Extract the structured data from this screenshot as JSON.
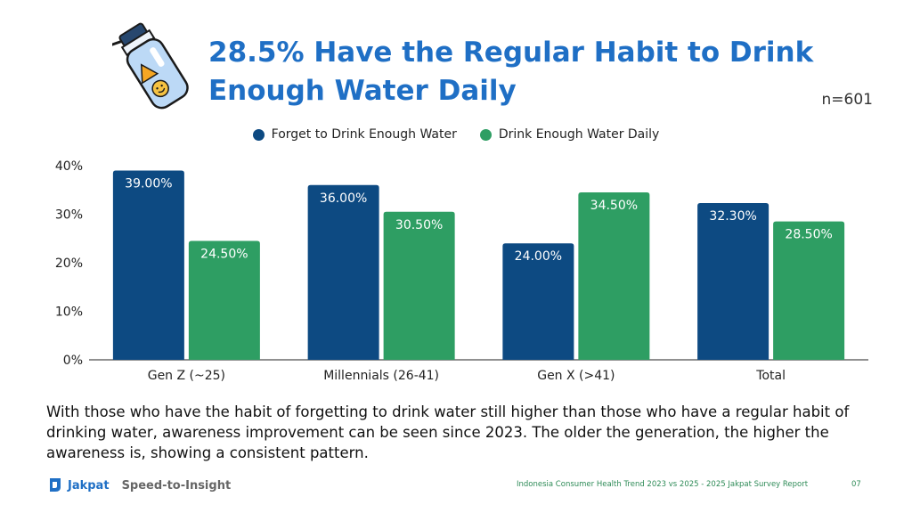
{
  "title": "28.5% Have the Regular Habit to Drink Enough Water Daily",
  "sample_size": "n=601",
  "caption": "With those who have the habit of forgetting to drink water still higher than those who have a regular habit of drinking water, awareness improvement can be seen since 2023. The older the generation, the higher the awareness is, showing a consistent pattern.",
  "brand": {
    "name": "Jakpat",
    "tagline": "Speed-to-Insight"
  },
  "footer": {
    "report": "Indonesia Consumer Health Trend 2023 vs 2025 - 2025 Jakpat Survey Report",
    "page": "07"
  },
  "colors": {
    "title": "#1f6fc5",
    "series_forget": "#0d4a82",
    "series_drink": "#2e9e63"
  },
  "icons": {
    "illustration": "water-bottle-icon",
    "logo": "jakpat-logo-icon"
  },
  "chart_data": {
    "type": "bar",
    "categories": [
      "Gen Z (~25)",
      "Millennials (26-41)",
      "Gen X (>41)",
      "Total"
    ],
    "series": [
      {
        "name": "Forget to Drink Enough Water",
        "values": [
          39.0,
          36.0,
          24.0,
          32.3
        ],
        "labels": [
          "39.00%",
          "36.00%",
          "24.00%",
          "32.30%"
        ],
        "color": "#0d4a82"
      },
      {
        "name": "Drink Enough Water Daily",
        "values": [
          24.5,
          30.5,
          34.5,
          28.5
        ],
        "labels": [
          "24.50%",
          "30.50%",
          "34.50%",
          "28.50%"
        ],
        "color": "#2e9e63"
      }
    ],
    "yticks": [
      "0%",
      "10%",
      "20%",
      "30%",
      "40%"
    ],
    "ylim": [
      0,
      40
    ],
    "grid": false,
    "legend": "top-center"
  }
}
